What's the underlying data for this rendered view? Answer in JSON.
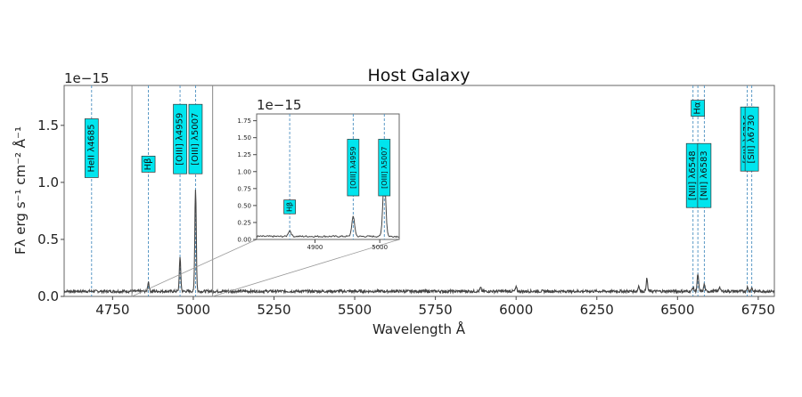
{
  "chart_data": {
    "type": "line",
    "title": "Host Galaxy",
    "xlabel": "Wavelength Å",
    "ylabel": "Fλ erg s⁻¹ cm⁻² Å⁻¹",
    "y_offset_text": "1e−15",
    "xlim": [
      4600,
      6800
    ],
    "ylim": [
      0,
      1.85
    ],
    "x_ticks": [
      4750,
      5000,
      5250,
      5500,
      5750,
      6000,
      6250,
      6500,
      6750
    ],
    "y_ticks": [
      0.0,
      0.5,
      1.0,
      1.5
    ],
    "y_tick_labels": [
      "0.0",
      "0.5",
      "1.0",
      "1.5"
    ],
    "grid": false,
    "line_color": "#444444",
    "marker_line_color": "#4a8fc0",
    "label_box_color": "#00e5ee",
    "series": [
      {
        "continuum": 0.045,
        "noise": 0.012,
        "features": [
          {
            "x": 4861,
            "amp": 0.085
          },
          {
            "x": 4959,
            "amp": 0.29
          },
          {
            "x": 5007,
            "amp": 0.9
          },
          {
            "x": 5890,
            "amp": 0.03
          },
          {
            "x": 6000,
            "amp": 0.035
          },
          {
            "x": 6380,
            "amp": 0.05
          },
          {
            "x": 6405,
            "amp": 0.11
          },
          {
            "x": 6548,
            "amp": 0.035
          },
          {
            "x": 6563,
            "amp": 0.15
          },
          {
            "x": 6583,
            "amp": 0.06
          },
          {
            "x": 6630,
            "amp": 0.04
          },
          {
            "x": 6716,
            "amp": 0.035
          },
          {
            "x": 6730,
            "amp": 0.03
          }
        ]
      }
    ],
    "emission_lines": [
      {
        "x": 4685,
        "label": "HeII λ4685",
        "label_y": 1.3
      },
      {
        "x": 4861,
        "label": "Hβ",
        "label_y": 1.16
      },
      {
        "x": 4959,
        "label": "[OIII] λ4959",
        "label_y": 1.38
      },
      {
        "x": 5007,
        "label": "[OIII] λ5007",
        "label_y": 1.38
      },
      {
        "x": 6548,
        "label": "[NII] λ6548",
        "label_y": 1.06
      },
      {
        "x": 6563,
        "label": "Hα",
        "label_y": 1.65
      },
      {
        "x": 6583,
        "label": "[NII] λ6583",
        "label_y": 1.06
      },
      {
        "x": 6716,
        "label": "[SII] λ6716",
        "label_y": 1.38
      },
      {
        "x": 6730,
        "label": "[SII] λ6730",
        "label_y": 1.38
      }
    ],
    "inset": {
      "zoom_region": [
        4810,
        5060
      ],
      "xlim": [
        4810,
        5030
      ],
      "ylim": [
        0,
        1.85
      ],
      "y_offset_text": "1e−15",
      "x_ticks": [
        4900,
        5000
      ],
      "y_ticks": [
        0.0,
        0.25,
        0.5,
        0.75,
        1.0,
        1.25,
        1.5,
        1.75
      ],
      "y_tick_labels": [
        "0.00",
        "0.25",
        "0.50",
        "0.75",
        "1.00",
        "1.25",
        "1.50",
        "1.75"
      ],
      "emission_lines": [
        {
          "x": 4861,
          "label": "Hβ",
          "label_y": 0.48
        },
        {
          "x": 4959,
          "label": "[OIII] λ4959",
          "label_y": 1.06
        },
        {
          "x": 5007,
          "label": "[OIII] λ5007",
          "label_y": 1.06
        }
      ]
    }
  }
}
